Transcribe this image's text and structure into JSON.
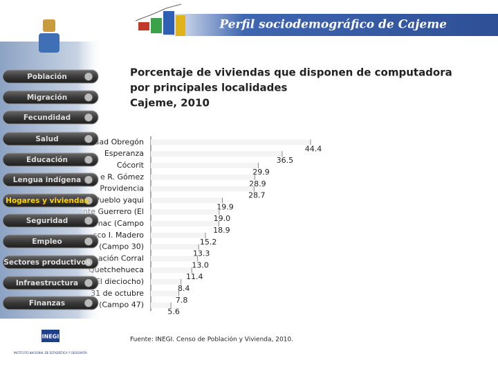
{
  "header": {
    "title": "Perfil sociodemográfico de Cajeme"
  },
  "menu": {
    "items": [
      "Población",
      "Migración",
      "Fecundidad",
      "Salud",
      "Educación",
      "Lengua indígena",
      "Hogares y viviendas",
      "Seguridad",
      "Empleo",
      "Sectores productivos",
      "Infraestructura",
      "Finanzas"
    ],
    "active": 6
  },
  "chart_data": {
    "type": "barh",
    "title": [
      "Porcentaje de viviendas que disponen de computadora",
      "por principales localidades"
    ],
    "subtitle": "Cajeme, 2010",
    "categories": [
      "dad Obregón",
      "Esperanza",
      "Cócorit",
      "e R. Gómez",
      "Providencia",
      "Pueblo yaqui",
      "Vicente Guerrero (El",
      "mac (Campo",
      "sco I. Madero",
      "(Campo 30)",
      "ación Corral",
      "Quetchehueca",
      "(El dieciocho)",
      "31 de octubre",
      "(Campo 47)"
    ],
    "values": [
      44.4,
      36.5,
      29.9,
      28.9,
      28.7,
      19.9,
      19,
      18.9,
      15.2,
      13.3,
      13,
      11.4,
      8.4,
      7.8,
      5.6
    ],
    "value_labels": [
      "44.4",
      "36.5",
      "29.9",
      "28.9",
      "28.7",
      "19.9",
      "19.0",
      "18.9",
      "15.2",
      "13.3",
      "13.0",
      "11.4",
      "8.4",
      "7.8",
      "5.6"
    ],
    "color": "#f4f4f4"
  },
  "source": "Fuente: INEGI. Censo de Población y Vivienda, 2010.",
  "footer": {
    "logo": "INEGI",
    "institute": "INSTITUTO NACIONAL DE ESTADÍSTICA Y GEOGRAFÍA"
  }
}
